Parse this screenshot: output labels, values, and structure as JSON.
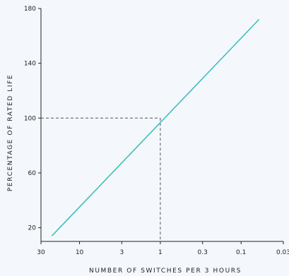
{
  "chart_data": {
    "type": "line",
    "title": "",
    "xlabel": "NUMBER OF SWITCHES PER 3 HOURS",
    "ylabel": "PERCENTAGE OF RATED LIFE",
    "x_scale": "log-reversed",
    "x_ticks": [
      30,
      10,
      3,
      1,
      0.3,
      0.1,
      0.03
    ],
    "x_tick_labels": [
      "30",
      "10",
      "3",
      "1",
      "0.3",
      "0.1",
      "0.03"
    ],
    "y_ticks": [
      20,
      60,
      100,
      140,
      180
    ],
    "y_tick_labels": [
      "20",
      "60",
      "100",
      "140",
      "180"
    ],
    "xlim": [
      30,
      0.03
    ],
    "ylim": [
      10,
      180
    ],
    "grid": false,
    "series": [
      {
        "x": [
          22,
          0.06
        ],
        "y": [
          14,
          172
        ]
      }
    ],
    "reference_point": {
      "x": 1,
      "y": 100
    },
    "colors": {
      "line": "#3fbfbd",
      "axis": "#222222",
      "reference": "#555555",
      "background": "#f4f7fb"
    }
  }
}
